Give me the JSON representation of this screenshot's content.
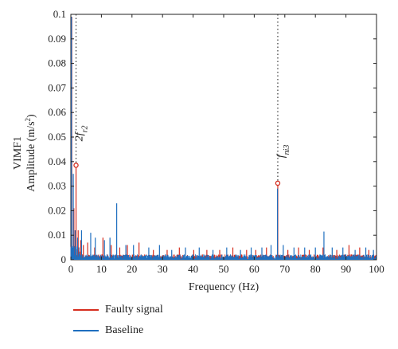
{
  "chart_data": {
    "type": "line",
    "ylabel_line1": "VIMF1",
    "ylabel_line2": "Amplitude (m/s",
    "ylabel_sup": "2",
    "ylabel_end": ")",
    "xlabel": "Frequency (Hz)",
    "xlim": [
      0,
      100
    ],
    "ylim": [
      0,
      0.1
    ],
    "xticks": [
      "0",
      "10",
      "20",
      "30",
      "40",
      "50",
      "60",
      "70",
      "80",
      "90",
      "100"
    ],
    "yticks": [
      "0",
      "0.01",
      "0.02",
      "0.03",
      "0.04",
      "0.05",
      "0.06",
      "0.07",
      "0.08",
      "0.09",
      "0.1"
    ],
    "colors": {
      "faulty": "#d62e1f",
      "baseline": "#1f6fbf"
    },
    "series": [
      {
        "name": "Faulty signal",
        "key": "faulty",
        "peaks": [
          [
            0.3,
            0.099
          ],
          [
            1.0,
            0.021
          ],
          [
            1.7,
            0.0385
          ],
          [
            2.4,
            0.012
          ],
          [
            3.2,
            0.008
          ],
          [
            4.1,
            0.006
          ],
          [
            5.5,
            0.007
          ],
          [
            7.8,
            0.005
          ],
          [
            10.5,
            0.009
          ],
          [
            13.2,
            0.006
          ],
          [
            16.0,
            0.005
          ],
          [
            18.5,
            0.006
          ],
          [
            22.3,
            0.007
          ],
          [
            27.0,
            0.004
          ],
          [
            31.5,
            0.004
          ],
          [
            35.5,
            0.005
          ],
          [
            40.2,
            0.004
          ],
          [
            44.5,
            0.004
          ],
          [
            48.7,
            0.004
          ],
          [
            53.0,
            0.005
          ],
          [
            57.5,
            0.004
          ],
          [
            60.5,
            0.004
          ],
          [
            64.0,
            0.005
          ],
          [
            67.7,
            0.0312
          ],
          [
            71.0,
            0.004
          ],
          [
            74.5,
            0.005
          ],
          [
            78.0,
            0.004
          ],
          [
            82.5,
            0.005
          ],
          [
            87.0,
            0.004
          ],
          [
            91.0,
            0.006
          ],
          [
            94.5,
            0.005
          ],
          [
            97.5,
            0.004
          ]
        ]
      },
      {
        "name": "Baseline",
        "key": "baseline",
        "peaks": [
          [
            0.2,
            0.099
          ],
          [
            0.8,
            0.035
          ],
          [
            1.4,
            0.012
          ],
          [
            2.2,
            0.009
          ],
          [
            3.5,
            0.012
          ],
          [
            6.5,
            0.011
          ],
          [
            8.0,
            0.009
          ],
          [
            11.0,
            0.008
          ],
          [
            12.8,
            0.009
          ],
          [
            15.0,
            0.023
          ],
          [
            18.0,
            0.006
          ],
          [
            20.5,
            0.006
          ],
          [
            25.5,
            0.005
          ],
          [
            29.0,
            0.006
          ],
          [
            33.0,
            0.004
          ],
          [
            37.5,
            0.005
          ],
          [
            42.0,
            0.005
          ],
          [
            46.5,
            0.004
          ],
          [
            51.0,
            0.005
          ],
          [
            55.5,
            0.004
          ],
          [
            59.0,
            0.005
          ],
          [
            62.5,
            0.005
          ],
          [
            65.5,
            0.006
          ],
          [
            67.6,
            0.029
          ],
          [
            69.5,
            0.006
          ],
          [
            73.0,
            0.005
          ],
          [
            76.5,
            0.005
          ],
          [
            80.0,
            0.005
          ],
          [
            82.8,
            0.0115
          ],
          [
            85.5,
            0.005
          ],
          [
            89.0,
            0.005
          ],
          [
            93.0,
            0.004
          ],
          [
            96.5,
            0.005
          ],
          [
            99.0,
            0.004
          ]
        ]
      }
    ],
    "annotations": [
      {
        "label_main": "2f",
        "label_sub": "r2",
        "x": 1.7,
        "y": 0.0385,
        "marker_color": "#d62e1f"
      },
      {
        "label_main": "f",
        "label_sub": "ni3",
        "x": 67.7,
        "y": 0.0312,
        "marker_color": "#d62e1f"
      }
    ]
  },
  "legend": {
    "faulty_label": "Faulty signal",
    "baseline_label": "Baseline"
  }
}
